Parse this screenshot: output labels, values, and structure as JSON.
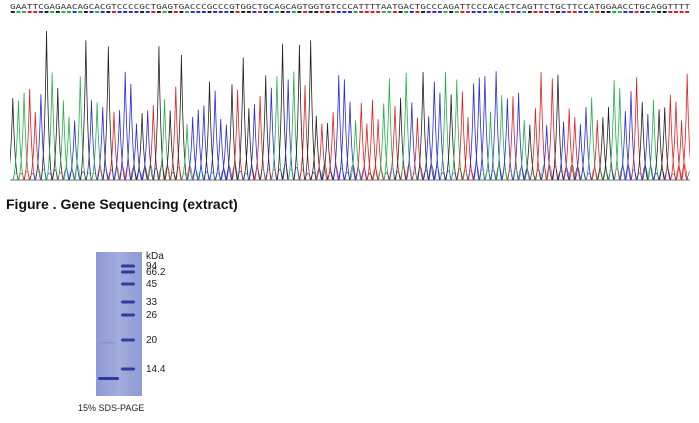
{
  "sequence": {
    "bases": "GAATTCGAGAACAGCACGTCCCCGCTGAGTGACCCGCCCGTGGCTGCAGCAGTGGTGTCCCATTTTAATGACTGCCCAGATTCCCACACTCAGTTCTGCTTCCATGGAACCTGCAGGTTTT",
    "colors": {
      "A": "#22b14c",
      "C": "#2a2ae0",
      "G": "#222222",
      "T": "#e02020"
    }
  },
  "figure_caption": "Figure . Gene Sequencing (extract)",
  "gel": {
    "unit": "kDa",
    "markers": [
      "94",
      "66.2",
      "45",
      "33",
      "26",
      "20",
      "14.4"
    ],
    "caption": "15% SDS-PAGE"
  }
}
